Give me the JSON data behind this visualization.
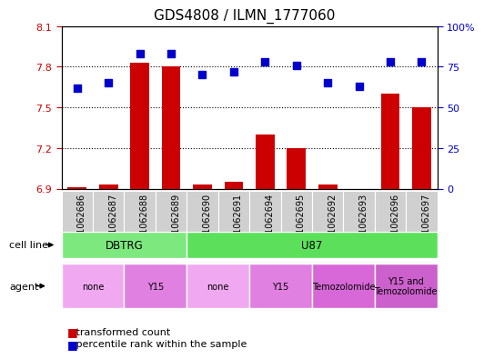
{
  "title": "GDS4808 / ILMN_1777060",
  "samples": [
    "GSM1062686",
    "GSM1062687",
    "GSM1062688",
    "GSM1062689",
    "GSM1062690",
    "GSM1062691",
    "GSM1062694",
    "GSM1062695",
    "GSM1062692",
    "GSM1062693",
    "GSM1062696",
    "GSM1062697"
  ],
  "transformed_count": [
    6.91,
    6.93,
    7.83,
    7.8,
    6.93,
    6.95,
    7.3,
    7.2,
    6.93,
    6.9,
    7.6,
    7.5
  ],
  "percentile_rank": [
    62,
    65,
    83,
    83,
    70,
    72,
    78,
    76,
    65,
    63,
    78,
    78
  ],
  "ylim_left": [
    6.9,
    8.1
  ],
  "ylim_right": [
    0,
    100
  ],
  "yticks_left": [
    6.9,
    7.2,
    7.5,
    7.8,
    8.1
  ],
  "yticks_right": [
    0,
    25,
    50,
    75,
    100
  ],
  "cell_line_groups": [
    {
      "label": "DBTRG",
      "start": 0,
      "end": 4,
      "color": "#7de87d"
    },
    {
      "label": "U87",
      "start": 4,
      "end": 12,
      "color": "#5ce05c"
    }
  ],
  "agent_groups": [
    {
      "label": "none",
      "start": 0,
      "end": 2,
      "color": "#f0a8f0"
    },
    {
      "label": "Y15",
      "start": 2,
      "end": 4,
      "color": "#e080e0"
    },
    {
      "label": "none",
      "start": 4,
      "end": 6,
      "color": "#f0a8f0"
    },
    {
      "label": "Y15",
      "start": 6,
      "end": 8,
      "color": "#e080e0"
    },
    {
      "label": "Temozolomide",
      "start": 8,
      "end": 10,
      "color": "#d868d8"
    },
    {
      "label": "Y15 and\nTemozolomide",
      "start": 10,
      "end": 12,
      "color": "#cc60cc"
    }
  ],
  "bar_color": "#cc0000",
  "dot_color": "#0000cc",
  "tick_bg": "#d0d0d0",
  "left_axis_color": "#cc0000",
  "right_axis_color": "#0000cc"
}
